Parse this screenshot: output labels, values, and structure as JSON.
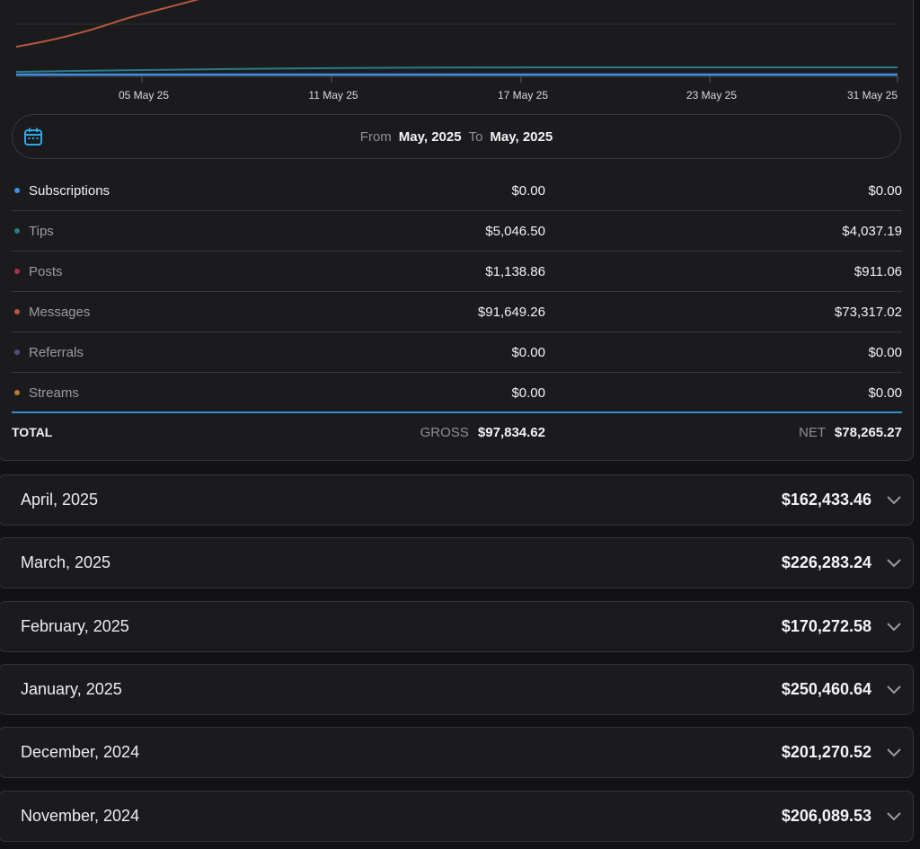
{
  "chart": {
    "x_tick_labels": [
      "05 May 25",
      "11 May 25",
      "17 May 25",
      "23 May 25",
      "31 May 25"
    ],
    "colors": {
      "messages": "#b5573f",
      "tips": "#2a7c86",
      "subscriptions": "#3d8fe8"
    }
  },
  "date_range": {
    "from_label": "From",
    "from_value": "May, 2025",
    "to_label": "To",
    "to_value": "May, 2025",
    "icon": "calendar-icon"
  },
  "categories": [
    {
      "label": "Subscriptions",
      "gross": "$0.00",
      "net": "$0.00",
      "color": "#3d8fe8"
    },
    {
      "label": "Tips",
      "gross": "$5,046.50",
      "net": "$4,037.19",
      "color": "#2a7c86"
    },
    {
      "label": "Posts",
      "gross": "$1,138.86",
      "net": "$911.06",
      "color": "#a8324f"
    },
    {
      "label": "Messages",
      "gross": "$91,649.26",
      "net": "$73,317.02",
      "color": "#b5573f"
    },
    {
      "label": "Referrals",
      "gross": "$0.00",
      "net": "$0.00",
      "color": "#5a4a8c"
    },
    {
      "label": "Streams",
      "gross": "$0.00",
      "net": "$0.00",
      "color": "#b87a2c"
    }
  ],
  "total": {
    "label": "TOTAL",
    "gross_label": "GROSS",
    "gross_value": "$97,834.62",
    "net_label": "NET",
    "net_value": "$78,265.27"
  },
  "months": [
    {
      "name": "April, 2025",
      "amount": "$162,433.46"
    },
    {
      "name": "March, 2025",
      "amount": "$226,283.24"
    },
    {
      "name": "February, 2025",
      "amount": "$170,272.58"
    },
    {
      "name": "January, 2025",
      "amount": "$250,460.64"
    },
    {
      "name": "December, 2024",
      "amount": "$201,270.52"
    },
    {
      "name": "November, 2024",
      "amount": "$206,089.53"
    }
  ]
}
